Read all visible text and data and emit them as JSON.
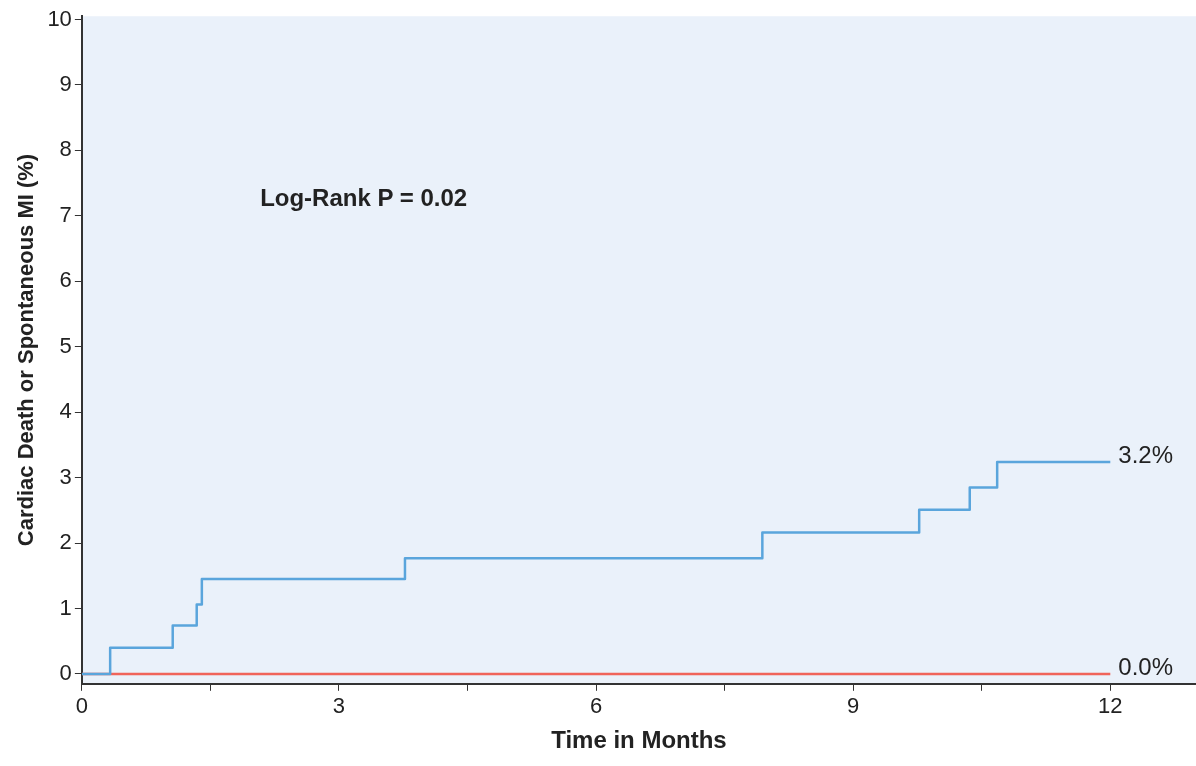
{
  "chart_data": {
    "type": "step",
    "xlabel": "Time in Months",
    "ylabel": "Cardiac Death or Spontaneous MI (%)",
    "xlim": [
      0,
      13
    ],
    "ylim": [
      -0.15,
      10.05
    ],
    "xticks": [
      0,
      {
        "value": 1.5,
        "label": null
      },
      3,
      {
        "value": 4.5,
        "label": null
      },
      6,
      {
        "value": 7.5,
        "label": null
      },
      9,
      {
        "value": 10.5,
        "label": null
      },
      12
    ],
    "yticks": [
      0,
      1,
      2,
      3,
      4,
      5,
      6,
      7,
      8,
      9,
      10
    ],
    "grid": false,
    "legend": false,
    "marker": "none",
    "line_style": "solid",
    "series": [
      {
        "color": "#5aa5dc",
        "x": [
          0,
          0.33,
          1.06,
          1.34,
          1.4,
          3.77,
          7.94,
          9.77,
          10.36,
          10.68,
          12
        ],
        "values": [
          0,
          0.4,
          0.74,
          1.06,
          1.45,
          1.77,
          2.16,
          2.51,
          2.85,
          3.24,
          3.24
        ]
      },
      {
        "color": "#f0645a",
        "x": [
          0,
          12
        ],
        "values": [
          0,
          0
        ]
      }
    ],
    "annotations": [
      "Log-Rank P = 0.02",
      {
        "text": "3.2%",
        "x": 12,
        "y": 3.24
      },
      {
        "text": "0.0%",
        "x": 12,
        "y": 0
      }
    ]
  }
}
